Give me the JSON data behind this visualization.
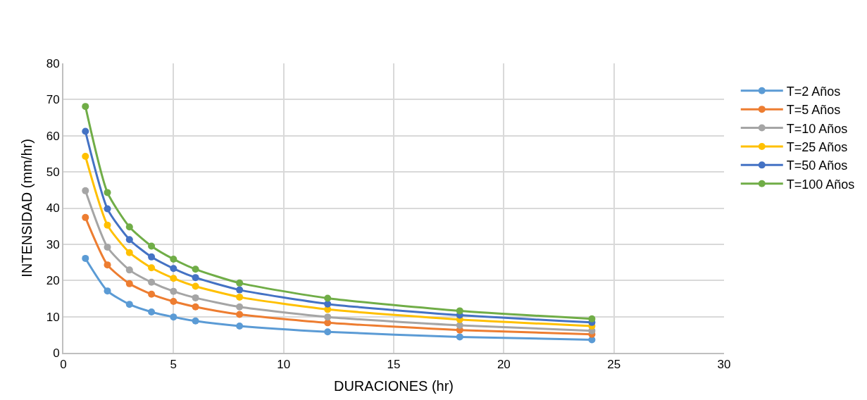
{
  "chart_data": {
    "type": "line",
    "xlabel": "DURACIONES (hr)",
    "ylabel": "INTENSIDAD (mm/hr)",
    "x": [
      1,
      2,
      3,
      4,
      5,
      6,
      8,
      12,
      18,
      24
    ],
    "series": [
      {
        "name": "T=2 Años",
        "color": "#5b9bd5",
        "values": [
          26.1,
          17.1,
          13.4,
          11.3,
          9.9,
          8.8,
          7.4,
          5.8,
          4.4,
          3.6
        ]
      },
      {
        "name": "T=5 Años",
        "color": "#ed7d31",
        "values": [
          37.4,
          24.3,
          19.1,
          16.2,
          14.2,
          12.7,
          10.6,
          8.3,
          6.3,
          5.1
        ]
      },
      {
        "name": "T=10 Años",
        "color": "#a5a5a5",
        "values": [
          44.8,
          29.2,
          22.9,
          19.5,
          17.0,
          15.2,
          12.7,
          9.9,
          7.6,
          6.1
        ]
      },
      {
        "name": "T=25 Años",
        "color": "#ffc000",
        "values": [
          54.3,
          35.3,
          27.7,
          23.5,
          20.6,
          18.4,
          15.4,
          12.0,
          9.2,
          7.4
        ]
      },
      {
        "name": "T=50 Años",
        "color": "#4472c4",
        "values": [
          61.2,
          39.8,
          31.3,
          26.5,
          23.3,
          20.8,
          17.4,
          13.5,
          10.4,
          8.4
        ]
      },
      {
        "name": "T=100 Años",
        "color": "#70ad47",
        "values": [
          68.1,
          44.3,
          34.8,
          29.5,
          25.9,
          23.1,
          19.3,
          15.1,
          11.6,
          9.4
        ]
      }
    ],
    "xlim": [
      0,
      30
    ],
    "xticks": [
      0,
      5,
      10,
      15,
      20,
      25,
      30
    ],
    "ylim": [
      0,
      80
    ],
    "yticks": [
      0,
      10,
      20,
      30,
      40,
      50,
      60,
      70,
      80
    ],
    "grid": true,
    "legend": "right",
    "marker": "circle",
    "line_style": "solid"
  }
}
